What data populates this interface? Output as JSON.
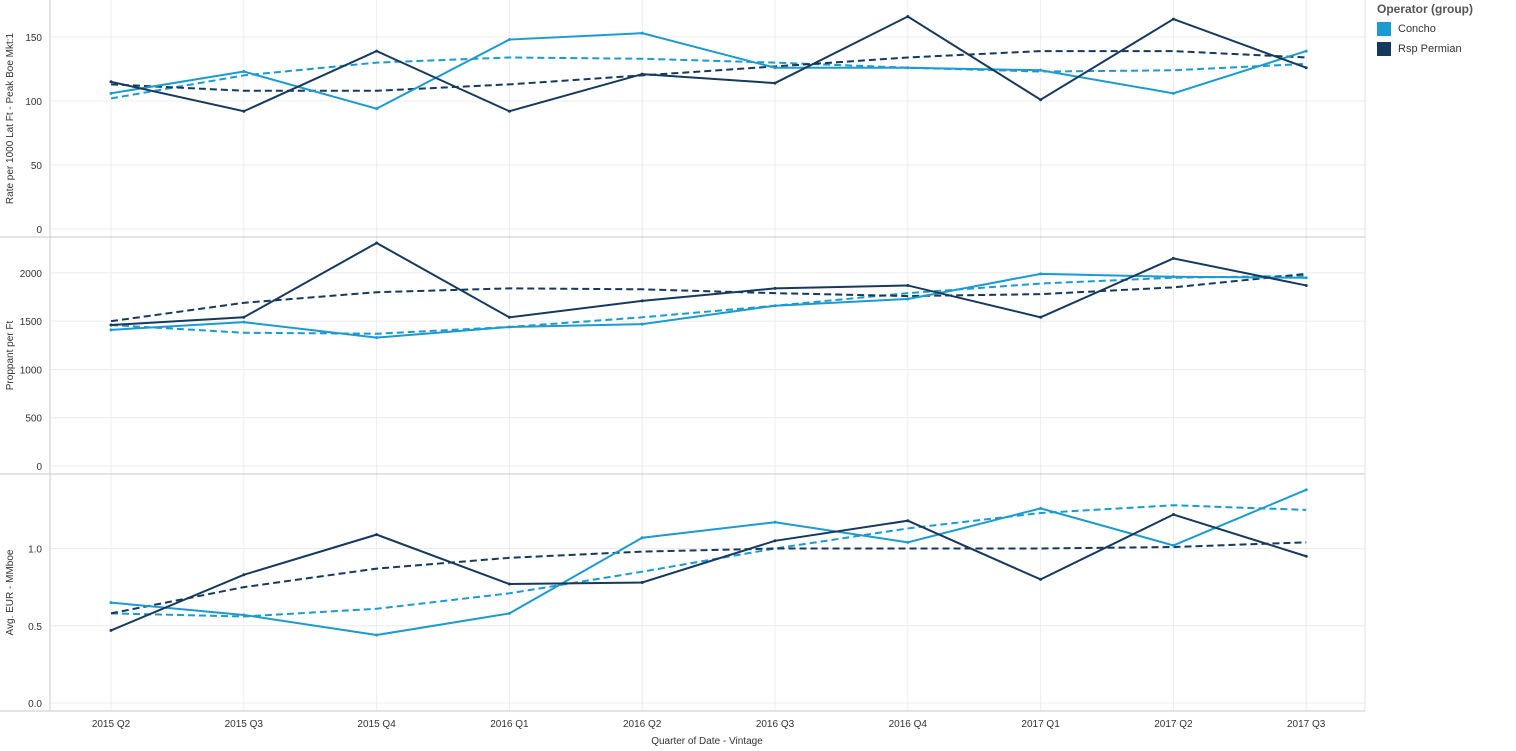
{
  "legend": {
    "title": "Operator (group)",
    "items": [
      {
        "label": "Concho",
        "color": "#1b9bd1"
      },
      {
        "label": "Rsp Permian",
        "color": "#16395e"
      }
    ]
  },
  "chart_data": {
    "type": "line",
    "xlabel": "Quarter of Date - Vintage",
    "categories": [
      "2015 Q2",
      "2015 Q3",
      "2015 Q4",
      "2016 Q1",
      "2016 Q2",
      "2016 Q3",
      "2016 Q4",
      "2017 Q1",
      "2017 Q2",
      "2017 Q3"
    ],
    "panels": [
      {
        "ylabel": "Rate per 1000 Lat Ft - Peak Boe Mkt:1",
        "yticks": [
          0,
          50,
          100,
          150
        ],
        "ytick_labels": [
          "0",
          "50",
          "100",
          "150"
        ],
        "ylim": [
          0,
          175
        ],
        "series": [
          {
            "name": "Concho",
            "color": "#1b9bd1",
            "values": [
              106,
              123,
              94,
              148,
              153,
              126,
              126,
              124,
              106,
              139
            ]
          },
          {
            "name": "Rsp Permian",
            "color": "#16395e",
            "values": [
              115,
              92,
              139,
              92,
              121,
              114,
              166,
              101,
              164,
              126
            ]
          }
        ],
        "trend_lines": [
          {
            "name": "Concho",
            "color": "#1b9bd1",
            "values": [
              102,
              120,
              130,
              134,
              133,
              130,
              126,
              123,
              124,
              129
            ]
          },
          {
            "name": "Rsp Permian",
            "color": "#16395e",
            "values": [
              113,
              108,
              108,
              113,
              120,
              127,
              134,
              139,
              139,
              134
            ]
          }
        ]
      },
      {
        "ylabel": "Proppant per Ft",
        "yticks": [
          0,
          500,
          1000,
          1500,
          2000
        ],
        "ytick_labels": [
          "0",
          "500",
          "1000",
          "1500",
          "2000"
        ],
        "ylim": [
          0,
          2320
        ],
        "series": [
          {
            "name": "Concho",
            "color": "#1b9bd1",
            "values": [
              1410,
              1490,
              1330,
              1440,
              1470,
              1660,
              1730,
              1990,
              1960,
              1950
            ]
          },
          {
            "name": "Rsp Permian",
            "color": "#16395e",
            "values": [
              1460,
              1540,
              2310,
              1540,
              1710,
              1840,
              1870,
              1540,
              2150,
              1870
            ]
          }
        ],
        "trend_lines": [
          {
            "name": "Concho",
            "color": "#1b9bd1",
            "values": [
              1460,
              1380,
              1370,
              1440,
              1540,
              1660,
              1790,
              1890,
              1950,
              1970
            ]
          },
          {
            "name": "Rsp Permian",
            "color": "#16395e",
            "values": [
              1500,
              1690,
              1800,
              1840,
              1830,
              1790,
              1760,
              1780,
              1850,
              1990
            ]
          }
        ]
      },
      {
        "ylabel": "Avg. EUR - MMboe",
        "yticks": [
          0.0,
          0.5,
          1.0
        ],
        "ytick_labels": [
          "0.0",
          "0.5",
          "1.0"
        ],
        "ylim": [
          0,
          1.45
        ],
        "series": [
          {
            "name": "Concho",
            "color": "#1b9bd1",
            "values": [
              0.65,
              0.57,
              0.44,
              0.58,
              1.07,
              1.17,
              1.04,
              1.26,
              1.02,
              1.38
            ]
          },
          {
            "name": "Rsp Permian",
            "color": "#16395e",
            "values": [
              0.47,
              0.83,
              1.09,
              0.77,
              0.78,
              1.05,
              1.18,
              0.8,
              1.22,
              0.95
            ]
          }
        ],
        "trend_lines": [
          {
            "name": "Concho",
            "color": "#1b9bd1",
            "values": [
              0.58,
              0.56,
              0.61,
              0.71,
              0.85,
              1.0,
              1.13,
              1.23,
              1.28,
              1.25
            ]
          },
          {
            "name": "Rsp Permian",
            "color": "#16395e",
            "values": [
              0.58,
              0.75,
              0.87,
              0.94,
              0.98,
              1.0,
              1.0,
              1.0,
              1.01,
              1.04
            ]
          }
        ]
      }
    ],
    "grid": true,
    "legend_position": "top-right"
  }
}
